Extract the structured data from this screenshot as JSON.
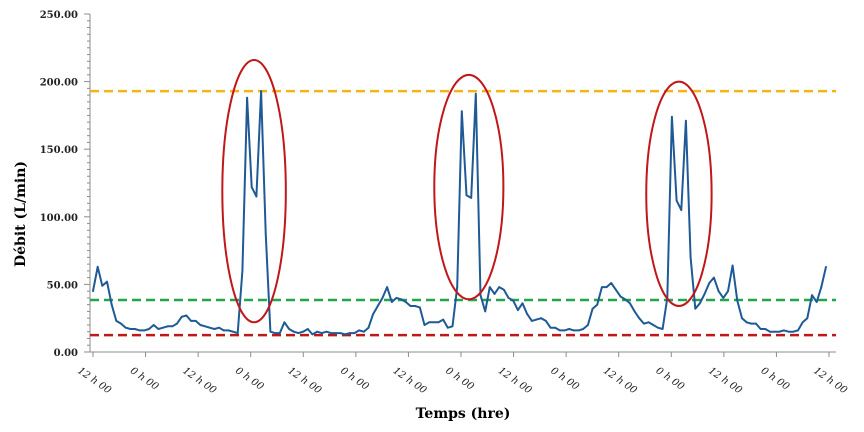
{
  "chart_data": {
    "type": "line",
    "xlabel": "Temps (hre)",
    "ylabel": "Débit (L/min)",
    "ylim": [
      0,
      250
    ],
    "yticks": [
      "0.00",
      "50.00",
      "100.00",
      "150.00",
      "200.00",
      "250.00"
    ],
    "xtick_labels": [
      "12 h 00",
      "0 h 00",
      "12 h 00",
      "0 h 00",
      "12 h 00",
      "0 h 00",
      "12 h 00",
      "0 h 00",
      "12 h 00",
      "0 h 00",
      "12 h 00",
      "0 h 00",
      "12 h 00",
      "0 h 00",
      "12 h 00"
    ],
    "grid": false,
    "series": [
      {
        "color": "#1f5a96",
        "values": [
          45,
          63,
          49,
          52,
          35,
          23,
          21,
          18,
          17,
          17,
          16,
          16,
          17,
          20,
          17,
          18,
          19,
          19,
          21,
          26,
          27,
          23,
          23,
          20,
          19,
          18,
          17,
          18,
          16,
          16,
          15,
          14,
          60,
          188,
          122,
          115,
          193,
          88,
          15,
          14,
          14,
          22,
          17,
          15,
          14,
          15,
          17,
          13,
          15,
          14,
          15,
          14,
          14,
          14,
          13,
          14,
          14,
          16,
          15,
          18,
          28,
          34,
          40,
          48,
          37,
          40,
          39,
          37,
          34,
          34,
          33,
          20,
          22,
          22,
          22,
          24,
          18,
          19,
          48,
          178,
          116,
          114,
          191,
          42,
          30,
          48,
          43,
          48,
          46,
          40,
          38,
          31,
          36,
          28,
          23,
          24,
          25,
          23,
          18,
          18,
          16,
          16,
          17,
          16,
          16,
          17,
          20,
          32,
          35,
          48,
          48,
          51,
          46,
          41,
          39,
          36,
          30,
          25,
          21,
          22,
          20,
          18,
          17,
          40,
          174,
          112,
          105,
          171,
          70,
          32,
          36,
          43,
          51,
          55,
          45,
          40,
          45,
          64,
          38,
          25,
          22,
          21,
          21,
          17,
          17,
          15,
          15,
          15,
          16,
          15,
          15,
          16,
          22,
          25,
          42,
          37,
          48,
          63
        ]
      }
    ],
    "reference_lines": [
      {
        "value": 193,
        "color": "#f2b418"
      },
      {
        "value": 38.5,
        "color": "#22a64a"
      },
      {
        "value": 12.5,
        "color": "#c0171a"
      }
    ],
    "highlights": [
      {
        "center_index": 34.5,
        "center_y": 119,
        "rx_points": 6.8,
        "ry_value": 97,
        "color": "#c0171a"
      },
      {
        "center_index": 80.5,
        "center_y": 122,
        "rx_points": 7.4,
        "ry_value": 83,
        "color": "#c0171a"
      },
      {
        "center_index": 125.5,
        "center_y": 117,
        "rx_points": 7.0,
        "ry_value": 83,
        "color": "#c0171a"
      }
    ]
  }
}
